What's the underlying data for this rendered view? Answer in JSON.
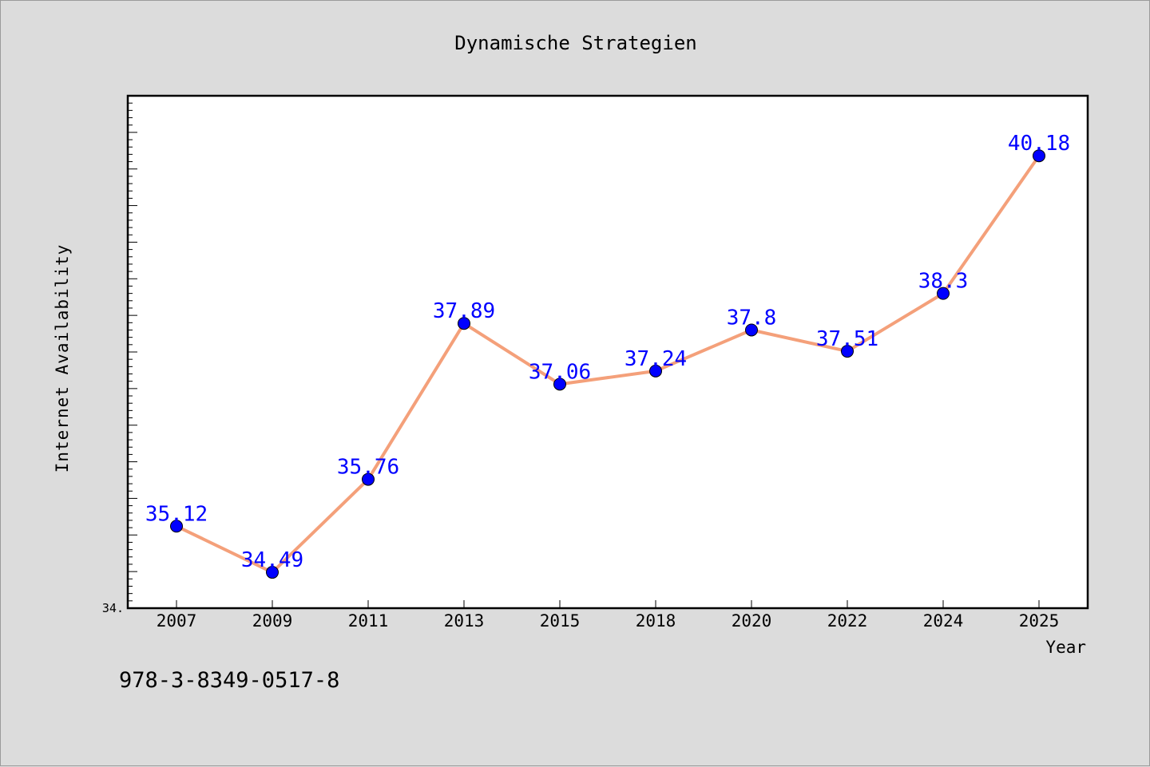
{
  "footer_text": "978-3-8349-0517-8",
  "colors": {
    "background": "#dcdcdc",
    "plot_background": "#ffffff",
    "line": "#f4a07a",
    "marker": "#0000ff",
    "data_label": "#0000ff"
  },
  "chart_data": {
    "type": "line",
    "title": "Dynamische Strategien",
    "xlabel": "Year",
    "ylabel": "Internet Availability",
    "categories": [
      "2007",
      "2009",
      "2011",
      "2013",
      "2015",
      "2018",
      "2020",
      "2022",
      "2024",
      "2025"
    ],
    "series": [
      {
        "values": [
          35.12,
          34.49,
          35.76,
          37.89,
          37.06,
          37.24,
          37.8,
          37.51,
          38.3,
          40.18
        ],
        "labels": [
          "35.12",
          "34.49",
          "35.76",
          "37.89",
          "37.06",
          "37.24",
          "37.8",
          "37.51",
          "38.3",
          "40.18"
        ]
      }
    ],
    "y_tick_labels": [
      "34."
    ],
    "ylim": [
      34.0,
      41.0
    ],
    "grid": false,
    "legend": "none"
  }
}
